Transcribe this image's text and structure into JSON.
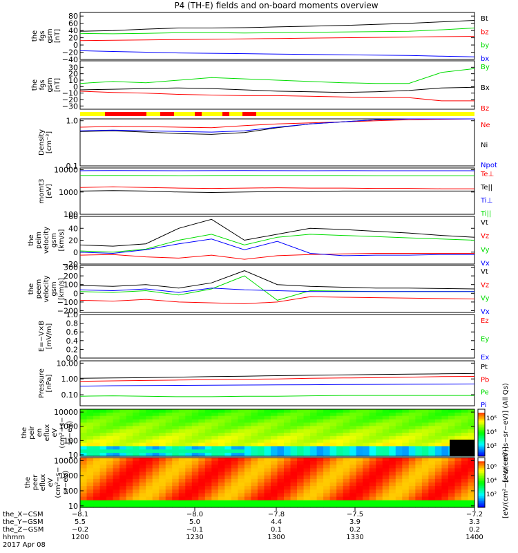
{
  "title": "P4 (TH-E) fields and on-board moments overview",
  "colors": {
    "black": "#000000",
    "red": "#ff0000",
    "green": "#00dd00",
    "blue": "#0000ff",
    "yellow": "#ffff00"
  },
  "chart_data": [
    {
      "type": "line",
      "id": "fgs-gsm",
      "ylabel": [
        "the",
        "fgs",
        "gsm",
        "[nT]"
      ],
      "ylim": [
        -40,
        90
      ],
      "yticks": [
        "80",
        "60",
        "40",
        "20",
        "0",
        "−20",
        "−40"
      ],
      "yvals": [
        80,
        60,
        40,
        20,
        0,
        -20,
        -40
      ],
      "series": [
        {
          "name": "Bt",
          "color": "#000000",
          "values": [
            38,
            40,
            44,
            47,
            47,
            48,
            50,
            52,
            54,
            57,
            60,
            64,
            68
          ]
        },
        {
          "name": "bz",
          "color": "#ff0000",
          "values": [
            12,
            13,
            14,
            15,
            16,
            17,
            18,
            19,
            20,
            21,
            22,
            23,
            24
          ]
        },
        {
          "name": "by",
          "color": "#00dd00",
          "values": [
            32,
            31,
            32,
            34,
            34,
            33,
            34,
            35,
            36,
            37,
            38,
            42,
            47
          ]
        },
        {
          "name": "bx",
          "color": "#0000ff",
          "values": [
            -16,
            -18,
            -20,
            -22,
            -23,
            -24,
            -25,
            -26,
            -27,
            -28,
            -29,
            -31,
            -33
          ]
        }
      ]
    },
    {
      "type": "line",
      "id": "fgs-gsm-2",
      "ylabel": [
        "the",
        "fgs",
        "gsm",
        "[nT]"
      ],
      "ylim": [
        -35,
        40
      ],
      "yticks": [
        "30",
        "20",
        "10",
        "0",
        "−10",
        "−20",
        "−30"
      ],
      "yvals": [
        30,
        20,
        10,
        0,
        -10,
        -20,
        -30
      ],
      "series": [
        {
          "name": "By",
          "color": "#00dd00",
          "values": [
            5,
            8,
            6,
            10,
            14,
            12,
            10,
            8,
            6,
            5,
            5,
            22,
            28
          ]
        },
        {
          "name": "Bx",
          "color": "#000000",
          "values": [
            -5,
            -4,
            -3,
            -2,
            -3,
            -5,
            -7,
            -8,
            -9,
            -8,
            -6,
            -2,
            -1
          ]
        },
        {
          "name": "Bz",
          "color": "#ff0000",
          "values": [
            -7,
            -9,
            -10,
            -12,
            -13,
            -14,
            -14,
            -15,
            -16,
            -17,
            -17,
            -22,
            -22
          ]
        }
      ]
    },
    {
      "type": "line",
      "id": "density",
      "ylabel": [
        "Density",
        "[cm⁻³]"
      ],
      "log": true,
      "ylim": [
        0.1,
        1.1
      ],
      "yticks": [
        "1.0",
        "0.1"
      ],
      "yvals": [
        1.0,
        0.1
      ],
      "series": [
        {
          "name": "Ne",
          "color": "#ff0000",
          "values": [
            0.72,
            0.75,
            0.74,
            0.72,
            0.7,
            0.78,
            0.85,
            0.9,
            0.95,
            1.0,
            1.05,
            1.08,
            1.1
          ]
        },
        {
          "name": "Ni",
          "color": "#000000",
          "values": [
            0.58,
            0.6,
            0.56,
            0.52,
            0.5,
            0.55,
            0.7,
            0.85,
            0.95,
            1.05,
            1.1,
            1.1,
            1.1
          ]
        },
        {
          "name": "Npot",
          "color": "#0000ff",
          "values": [
            0.6,
            0.62,
            0.6,
            0.58,
            0.56,
            0.6,
            0.72,
            0.85,
            0.95,
            1.05,
            1.1,
            1.1,
            1.1
          ]
        }
      ]
    },
    {
      "type": "line",
      "id": "mom",
      "ylabel": [
        "momt3",
        "[eV]"
      ],
      "log": true,
      "ylim": [
        100,
        12000
      ],
      "yticks": [
        "10000",
        "1000",
        "100"
      ],
      "yvals": [
        10000,
        1000,
        100
      ],
      "series": [
        {
          "name": "Te⊥",
          "color": "#ff0000",
          "values": [
            1600,
            1700,
            1600,
            1500,
            1450,
            1500,
            1550,
            1500,
            1500,
            1450,
            1450,
            1400,
            1400
          ]
        },
        {
          "name": "Te||",
          "color": "#000000",
          "values": [
            1100,
            1150,
            1100,
            1000,
            950,
            1000,
            1050,
            1050,
            1100,
            1100,
            1100,
            1100,
            1100
          ]
        },
        {
          "name": "Ti⊥",
          "color": "#0000ff",
          "values": [
            9000,
            9200,
            9100,
            9000,
            9100,
            9200,
            9100,
            9000,
            9100,
            9000,
            9000,
            9000,
            9000
          ]
        },
        {
          "name": "Ti||",
          "color": "#00dd00",
          "values": [
            5500,
            5600,
            5500,
            5400,
            5500,
            5600,
            5500,
            5500,
            5500,
            5400,
            5400,
            5400,
            5400
          ]
        }
      ]
    },
    {
      "type": "line",
      "id": "peim",
      "ylabel": [
        "the",
        "peim",
        "velocity",
        "gsm",
        "[km/s]"
      ],
      "ylim": [
        -20,
        60
      ],
      "yticks": [
        "60",
        "40",
        "20",
        "0",
        "−20"
      ],
      "yvals": [
        60,
        40,
        20,
        0,
        -20
      ],
      "series": [
        {
          "name": "Vt",
          "color": "#000000",
          "values": [
            12,
            10,
            14,
            40,
            55,
            20,
            30,
            40,
            38,
            35,
            32,
            28,
            25
          ]
        },
        {
          "name": "Vz",
          "color": "#ff0000",
          "values": [
            -5,
            -4,
            -8,
            -10,
            -5,
            -12,
            -6,
            -4,
            -3,
            -2,
            -2,
            -2,
            -2
          ]
        },
        {
          "name": "Vy",
          "color": "#00dd00",
          "values": [
            2,
            0,
            5,
            20,
            30,
            12,
            25,
            30,
            28,
            26,
            24,
            22,
            20
          ]
        },
        {
          "name": "Vx",
          "color": "#0000ff",
          "values": [
            0,
            -2,
            4,
            14,
            22,
            4,
            18,
            -2,
            -6,
            -5,
            -5,
            -4,
            -4
          ]
        }
      ]
    },
    {
      "type": "line",
      "id": "peem",
      "ylabel": [
        "the",
        "peem",
        "velocity",
        "gsm",
        "[km/s]"
      ],
      "ylim": [
        -220,
        320
      ],
      "yticks": [
        "300",
        "200",
        "100",
        "0",
        "−100",
        "−200"
      ],
      "yvals": [
        300,
        200,
        100,
        0,
        -100,
        -200
      ],
      "series": [
        {
          "name": "Vt",
          "color": "#000000",
          "values": [
            90,
            80,
            100,
            60,
            120,
            260,
            100,
            80,
            70,
            60,
            60,
            55,
            50
          ]
        },
        {
          "name": "Vz",
          "color": "#ff0000",
          "values": [
            -80,
            -90,
            -70,
            -100,
            -110,
            -120,
            -100,
            -40,
            -45,
            -50,
            -55,
            -60,
            -65
          ]
        },
        {
          "name": "Vy",
          "color": "#00dd00",
          "values": [
            20,
            10,
            30,
            -20,
            50,
            200,
            -80,
            30,
            25,
            20,
            20,
            20,
            20
          ]
        },
        {
          "name": "Vx",
          "color": "#0000ff",
          "values": [
            40,
            30,
            50,
            10,
            60,
            40,
            30,
            20,
            20,
            20,
            20,
            20,
            20
          ]
        }
      ]
    },
    {
      "type": "line",
      "id": "efield",
      "ylabel": [
        "E=−V×B",
        "[mV/m]"
      ],
      "ylim": [
        0,
        1
      ],
      "yticks": [
        "1.0",
        "0.8",
        "0.6",
        "0.4",
        "0.2",
        "0.0"
      ],
      "yvals": [
        1,
        0.8,
        0.6,
        0.4,
        0.2,
        0
      ],
      "series": [
        {
          "name": "Ez",
          "color": "#ff0000",
          "values": []
        },
        {
          "name": "Ey",
          "color": "#00dd00",
          "values": []
        },
        {
          "name": "Ex",
          "color": "#0000ff",
          "values": []
        }
      ]
    },
    {
      "type": "line",
      "id": "pressure",
      "ylabel": [
        "Pressure",
        "[nPa]"
      ],
      "log": true,
      "ylim": [
        0.02,
        14
      ],
      "yticks": [
        "10.00",
        "1.00",
        "0.10"
      ],
      "yvals": [
        10,
        1,
        0.1
      ],
      "series": [
        {
          "name": "Pt",
          "color": "#000000",
          "values": [
            1.1,
            1.15,
            1.2,
            1.3,
            1.4,
            1.5,
            1.6,
            1.7,
            1.8,
            1.9,
            2.0,
            2.1,
            2.2
          ]
        },
        {
          "name": "Pb",
          "color": "#ff0000",
          "values": [
            0.7,
            0.75,
            0.8,
            0.85,
            0.9,
            0.95,
            1.0,
            1.1,
            1.15,
            1.2,
            1.3,
            1.4,
            1.45
          ]
        },
        {
          "name": "Pe",
          "color": "#00dd00",
          "values": [
            0.08,
            0.085,
            0.08,
            0.075,
            0.075,
            0.08,
            0.08,
            0.085,
            0.09,
            0.09,
            0.09,
            0.09,
            0.09
          ]
        },
        {
          "name": "Pi",
          "color": "#0000ff",
          "values": [
            0.35,
            0.37,
            0.38,
            0.39,
            0.4,
            0.41,
            0.42,
            0.43,
            0.44,
            0.45,
            0.46,
            0.47,
            0.48
          ]
        }
      ]
    },
    {
      "type": "heatmap",
      "id": "peir",
      "ylabel": [
        "the",
        "peir",
        "en",
        "eflux",
        "eV",
        "(cm²−s−",
        "sr−eV)"
      ],
      "log": true,
      "yticks": [
        "10000",
        "1000",
        "100",
        "10"
      ],
      "yvals": [
        10000,
        1000,
        100,
        10
      ],
      "colorbar": {
        "label": "[eV/(cm²−s−sr−eV)] (All Qs)",
        "ticks": [
          "10⁶",
          "10⁴",
          "10²"
        ]
      }
    },
    {
      "type": "heatmap",
      "id": "peer",
      "ylabel": [
        "the",
        "peer",
        "eflux",
        "eV",
        "(cm²−s−",
        "sr−eV)"
      ],
      "log": true,
      "yticks": [
        "10000",
        "1000",
        "100",
        "10"
      ],
      "yvals": [
        10000,
        1000,
        100,
        10
      ],
      "colorbar": {
        "label": "[eV/(cm²−s−sr−eV)]",
        "ticks": [
          "10⁶",
          "10⁴",
          "10²"
        ]
      }
    }
  ],
  "x_axis": {
    "rows": [
      {
        "label": "the_X−CSM",
        "values": [
          "−8.1",
          "−8.0",
          "−7.8",
          "−7.5",
          "−7.2"
        ]
      },
      {
        "label": "the_Y−GSM",
        "values": [
          "5.5",
          "5.0",
          "4.4",
          "3.9",
          "3.3"
        ]
      },
      {
        "label": "the_Z−GSM",
        "values": [
          "−0.2",
          "−0.1",
          "0.1",
          "0.2",
          "0.2"
        ]
      },
      {
        "label": "hhmm",
        "values": [
          "1200",
          "1230",
          "1300",
          "1330",
          "1400"
        ]
      }
    ],
    "date": "2017 Apr 08"
  }
}
